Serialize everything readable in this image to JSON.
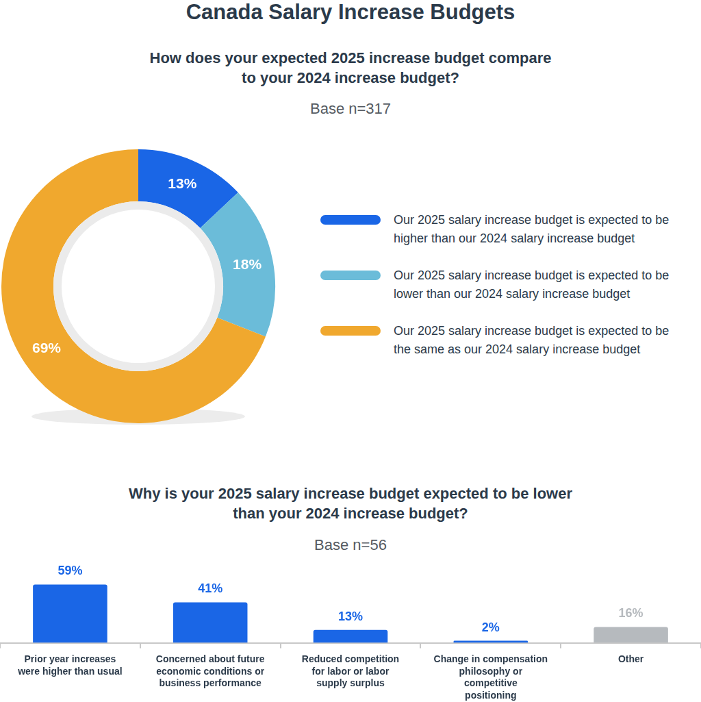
{
  "title": "Canada Salary Increase Budgets",
  "chart_data": [
    {
      "type": "doughnut",
      "title": "How does your expected 2025 increase budget compare to your 2024 increase budget?",
      "subtitle": "Base n=317",
      "categories": [
        "Our 2025 salary increase budget is expected to be higher than our 2024 salary increase budget",
        "Our 2025 salary increase budget is expected to be lower than our 2024 salary increase budget",
        "Our 2025 salary increase budget is expected to be the same as our 2024 salary increase budget"
      ],
      "values": [
        13,
        18,
        69
      ],
      "value_labels": [
        "13%",
        "18%",
        "69%"
      ],
      "colors": [
        "#1a66e6",
        "#6bbcd9",
        "#f0a82e"
      ],
      "data_labels": true,
      "legend": "right"
    },
    {
      "type": "bar",
      "title": "Why is your 2025 salary increase budget expected to be lower than your 2024 increase budget?",
      "subtitle": "Base n=56",
      "categories": [
        "Prior year increases were higher than usual",
        "Concerned about future economic conditions or business performance",
        "Reduced competition for labor or labor supply surplus",
        "Change in compensation philosophy or competitive positioning",
        "Other"
      ],
      "values": [
        59,
        41,
        13,
        2,
        16
      ],
      "value_labels": [
        "59%",
        "41%",
        "13%",
        "2%",
        "16%"
      ],
      "colors": [
        "#1a66e6",
        "#1a66e6",
        "#1a66e6",
        "#1a66e6",
        "#b6babe"
      ],
      "ylim": [
        0,
        60
      ],
      "grid": false,
      "data_labels": true,
      "tick_labels": "x"
    }
  ]
}
